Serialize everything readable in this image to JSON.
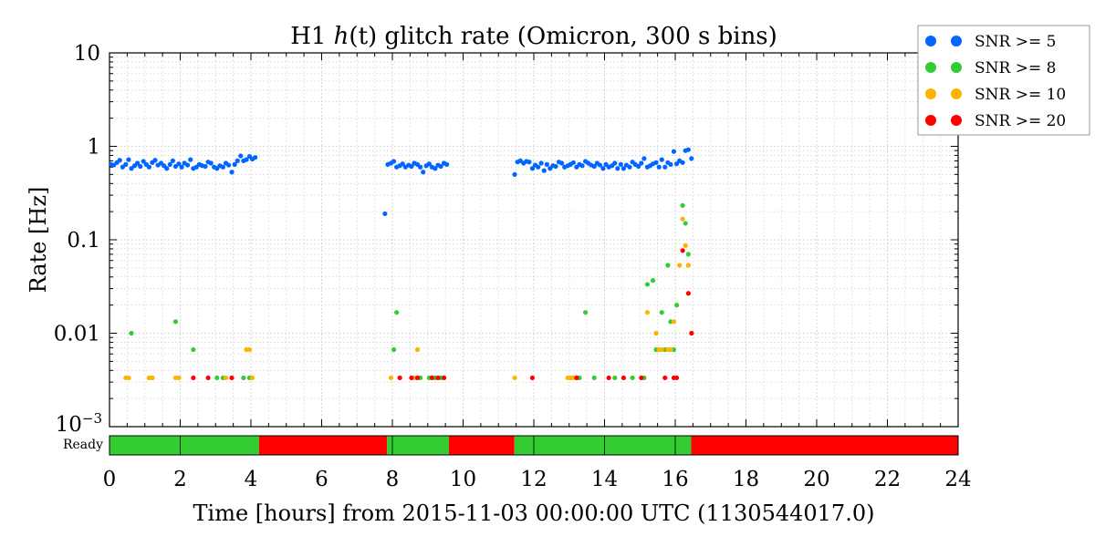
{
  "chart_data": {
    "type": "scatter",
    "title": {
      "prefix": "H1 ",
      "italic": "h",
      "paren": "(t)",
      "suffix": " glitch rate (Omicron, 300 s bins)"
    },
    "xlabel": "Time [hours] from 2015-11-03 00:00:00 UTC (1130544017.0)",
    "ylabel": "Rate [Hz]",
    "xlim": [
      0,
      24
    ],
    "ylim": [
      0.001,
      10
    ],
    "yscale": "log",
    "grid": true,
    "legend_position": "outside-top-right",
    "x_ticks": [
      {
        "value": 0,
        "label": "0"
      },
      {
        "value": 2,
        "label": "2"
      },
      {
        "value": 4,
        "label": "4"
      },
      {
        "value": 6,
        "label": "6"
      },
      {
        "value": 8,
        "label": "8"
      },
      {
        "value": 10,
        "label": "10"
      },
      {
        "value": 12,
        "label": "12"
      },
      {
        "value": 14,
        "label": "14"
      },
      {
        "value": 16,
        "label": "16"
      },
      {
        "value": 18,
        "label": "18"
      },
      {
        "value": 20,
        "label": "20"
      },
      {
        "value": 22,
        "label": "22"
      },
      {
        "value": 24,
        "label": "24"
      }
    ],
    "y_ticks": [
      {
        "value": 10,
        "label": "10"
      },
      {
        "value": 1,
        "label": "1"
      },
      {
        "value": 0.1,
        "label": "0.1"
      },
      {
        "value": 0.01,
        "label": "0.01"
      }
    ],
    "y_bottom_label": {
      "base": "10",
      "exp": "−3"
    },
    "series": [
      {
        "name": "SNR >= 5",
        "color": "#0066ff",
        "x": [
          0.04,
          0.12,
          0.21,
          0.29,
          0.37,
          0.46,
          0.54,
          0.62,
          0.71,
          0.79,
          0.87,
          0.96,
          1.04,
          1.12,
          1.21,
          1.29,
          1.37,
          1.46,
          1.54,
          1.62,
          1.71,
          1.79,
          1.87,
          1.96,
          2.04,
          2.12,
          2.21,
          2.29,
          2.37,
          2.46,
          2.54,
          2.62,
          2.71,
          2.79,
          2.87,
          2.96,
          3.04,
          3.12,
          3.21,
          3.29,
          3.37,
          3.46,
          3.54,
          3.62,
          3.71,
          3.79,
          3.87,
          3.96,
          4.04,
          4.12,
          7.79,
          7.87,
          7.96,
          8.04,
          8.12,
          8.21,
          8.29,
          8.37,
          8.46,
          8.54,
          8.62,
          8.71,
          8.79,
          8.87,
          8.96,
          9.04,
          9.12,
          9.21,
          9.29,
          9.37,
          9.46,
          9.54,
          11.46,
          11.54,
          11.62,
          11.71,
          11.79,
          11.87,
          11.96,
          12.04,
          12.12,
          12.21,
          12.29,
          12.37,
          12.46,
          12.54,
          12.62,
          12.71,
          12.79,
          12.87,
          12.96,
          13.04,
          13.12,
          13.21,
          13.29,
          13.37,
          13.46,
          13.54,
          13.62,
          13.71,
          13.79,
          13.87,
          13.96,
          14.04,
          14.12,
          14.21,
          14.29,
          14.37,
          14.46,
          14.54,
          14.62,
          14.71,
          14.79,
          14.87,
          14.96,
          15.04,
          15.12,
          15.21,
          15.29,
          15.37,
          15.46,
          15.54,
          15.62,
          15.71,
          15.79,
          15.87,
          15.96,
          16.04,
          16.12,
          16.21,
          16.29,
          16.37,
          16.46
        ],
        "y": [
          0.64,
          0.63,
          0.67,
          0.71,
          0.6,
          0.64,
          0.72,
          0.58,
          0.62,
          0.66,
          0.61,
          0.69,
          0.64,
          0.6,
          0.67,
          0.71,
          0.63,
          0.66,
          0.62,
          0.58,
          0.64,
          0.7,
          0.61,
          0.65,
          0.6,
          0.66,
          0.63,
          0.72,
          0.58,
          0.6,
          0.64,
          0.62,
          0.61,
          0.68,
          0.66,
          0.6,
          0.58,
          0.62,
          0.6,
          0.66,
          0.63,
          0.53,
          0.64,
          0.7,
          0.79,
          0.7,
          0.72,
          0.78,
          0.73,
          0.76,
          0.19,
          0.64,
          0.66,
          0.69,
          0.6,
          0.62,
          0.65,
          0.6,
          0.63,
          0.61,
          0.66,
          0.64,
          0.6,
          0.53,
          0.62,
          0.65,
          0.6,
          0.58,
          0.63,
          0.61,
          0.66,
          0.64,
          0.5,
          0.68,
          0.7,
          0.66,
          0.69,
          0.68,
          0.58,
          0.63,
          0.6,
          0.66,
          0.55,
          0.64,
          0.58,
          0.62,
          0.61,
          0.68,
          0.66,
          0.6,
          0.62,
          0.64,
          0.67,
          0.6,
          0.64,
          0.62,
          0.69,
          0.66,
          0.63,
          0.61,
          0.66,
          0.63,
          0.58,
          0.64,
          0.6,
          0.62,
          0.66,
          0.58,
          0.64,
          0.58,
          0.63,
          0.6,
          0.68,
          0.64,
          0.61,
          0.66,
          0.74,
          0.6,
          0.62,
          0.65,
          0.67,
          0.6,
          0.72,
          0.6,
          0.67,
          0.64,
          0.88,
          0.65,
          0.7,
          0.67,
          0.9,
          0.92,
          0.74
        ]
      },
      {
        "name": "SNR >= 8",
        "color": "#33cc33",
        "x": [
          0.54,
          0.62,
          1.12,
          1.21,
          1.87,
          1.96,
          2.37,
          3.04,
          3.21,
          3.79,
          3.96,
          8.04,
          8.12,
          8.62,
          8.79,
          9.04,
          9.21,
          9.37,
          13.04,
          13.29,
          13.46,
          13.71,
          14.29,
          14.79,
          15.12,
          15.21,
          15.37,
          15.46,
          15.62,
          15.71,
          15.79,
          15.87,
          15.96,
          16.04,
          16.21,
          16.29,
          16.37
        ],
        "y": [
          0.00333,
          0.01,
          0.00333,
          0.00333,
          0.0133,
          0.00333,
          0.00667,
          0.00333,
          0.00333,
          0.00333,
          0.00333,
          0.00667,
          0.0167,
          0.00333,
          0.00333,
          0.00333,
          0.00333,
          0.00333,
          0.00333,
          0.00333,
          0.0167,
          0.00333,
          0.00333,
          0.00333,
          0.00333,
          0.0333,
          0.0367,
          0.00667,
          0.0167,
          0.00667,
          0.0533,
          0.0133,
          0.00667,
          0.02,
          0.233,
          0.15,
          0.07
        ]
      },
      {
        "name": "SNR >= 10",
        "color": "#ffb200",
        "x": [
          0.46,
          0.54,
          1.12,
          1.21,
          1.87,
          1.96,
          3.29,
          3.87,
          3.96,
          4.04,
          7.96,
          8.62,
          8.71,
          9.12,
          9.46,
          11.46,
          12.96,
          13.04,
          13.12,
          13.21,
          15.21,
          15.46,
          15.54,
          15.62,
          15.79,
          15.87,
          15.96,
          16.12,
          16.21,
          16.29,
          16.37
        ],
        "y": [
          0.00333,
          0.00333,
          0.00333,
          0.00333,
          0.00333,
          0.00333,
          0.00333,
          0.00667,
          0.00667,
          0.00333,
          0.00333,
          0.00333,
          0.00667,
          0.00333,
          0.00333,
          0.00333,
          0.00333,
          0.00333,
          0.00333,
          0.00333,
          0.0167,
          0.01,
          0.00667,
          0.00667,
          0.00667,
          0.00667,
          0.0133,
          0.0533,
          0.167,
          0.0867,
          0.0533
        ]
      },
      {
        "name": "SNR >= 20",
        "color": "#ff0000",
        "x": [
          2.37,
          2.79,
          3.46,
          8.21,
          8.54,
          8.71,
          9.12,
          9.29,
          9.46,
          11.96,
          13.21,
          14.12,
          14.54,
          15.04,
          15.71,
          15.96,
          16.04,
          16.21,
          16.37,
          16.46
        ],
        "y": [
          0.00333,
          0.00333,
          0.00333,
          0.00333,
          0.00333,
          0.00333,
          0.00333,
          0.00333,
          0.00333,
          0.00333,
          0.00333,
          0.00333,
          0.00333,
          0.00333,
          0.00333,
          0.00333,
          0.00333,
          0.0767,
          0.0267,
          0.01
        ]
      }
    ],
    "segments": {
      "label": "Ready",
      "on_color": "#33cc33",
      "off_color": "#ff0000",
      "items": [
        {
          "start": 0.0,
          "end": 4.23,
          "state": "on"
        },
        {
          "start": 4.23,
          "end": 7.85,
          "state": "off"
        },
        {
          "start": 7.85,
          "end": 9.6,
          "state": "on"
        },
        {
          "start": 9.6,
          "end": 11.45,
          "state": "off"
        },
        {
          "start": 11.45,
          "end": 16.45,
          "state": "on"
        },
        {
          "start": 16.45,
          "end": 24.0,
          "state": "off"
        }
      ],
      "dividers": [
        2,
        8,
        12,
        14,
        16
      ]
    }
  }
}
